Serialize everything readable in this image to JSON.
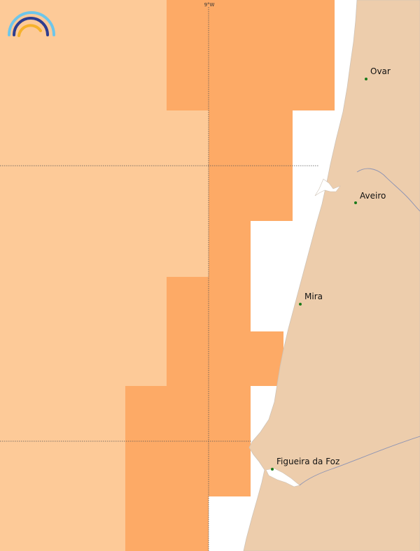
{
  "map": {
    "colors": {
      "sea_background": "#ffffff",
      "zone_light": "#fdca98",
      "zone_dark": "#fdaa66",
      "land": "#edcdac",
      "coast_line": "#cfc3b6",
      "river": "#8c93b4",
      "graticule": "#555555",
      "city_marker": "#1a7a1a"
    },
    "graticule": {
      "longitude_label": "9°W"
    },
    "cities": [
      {
        "name": "Ovar"
      },
      {
        "name": "Aveiro"
      },
      {
        "name": "Mira"
      },
      {
        "name": "Figueira da Foz"
      }
    ],
    "logo": {
      "icon": "rainbow-arcs-logo",
      "colors": [
        "#6ec6ea",
        "#2e3d8f",
        "#f6b22b"
      ]
    }
  }
}
